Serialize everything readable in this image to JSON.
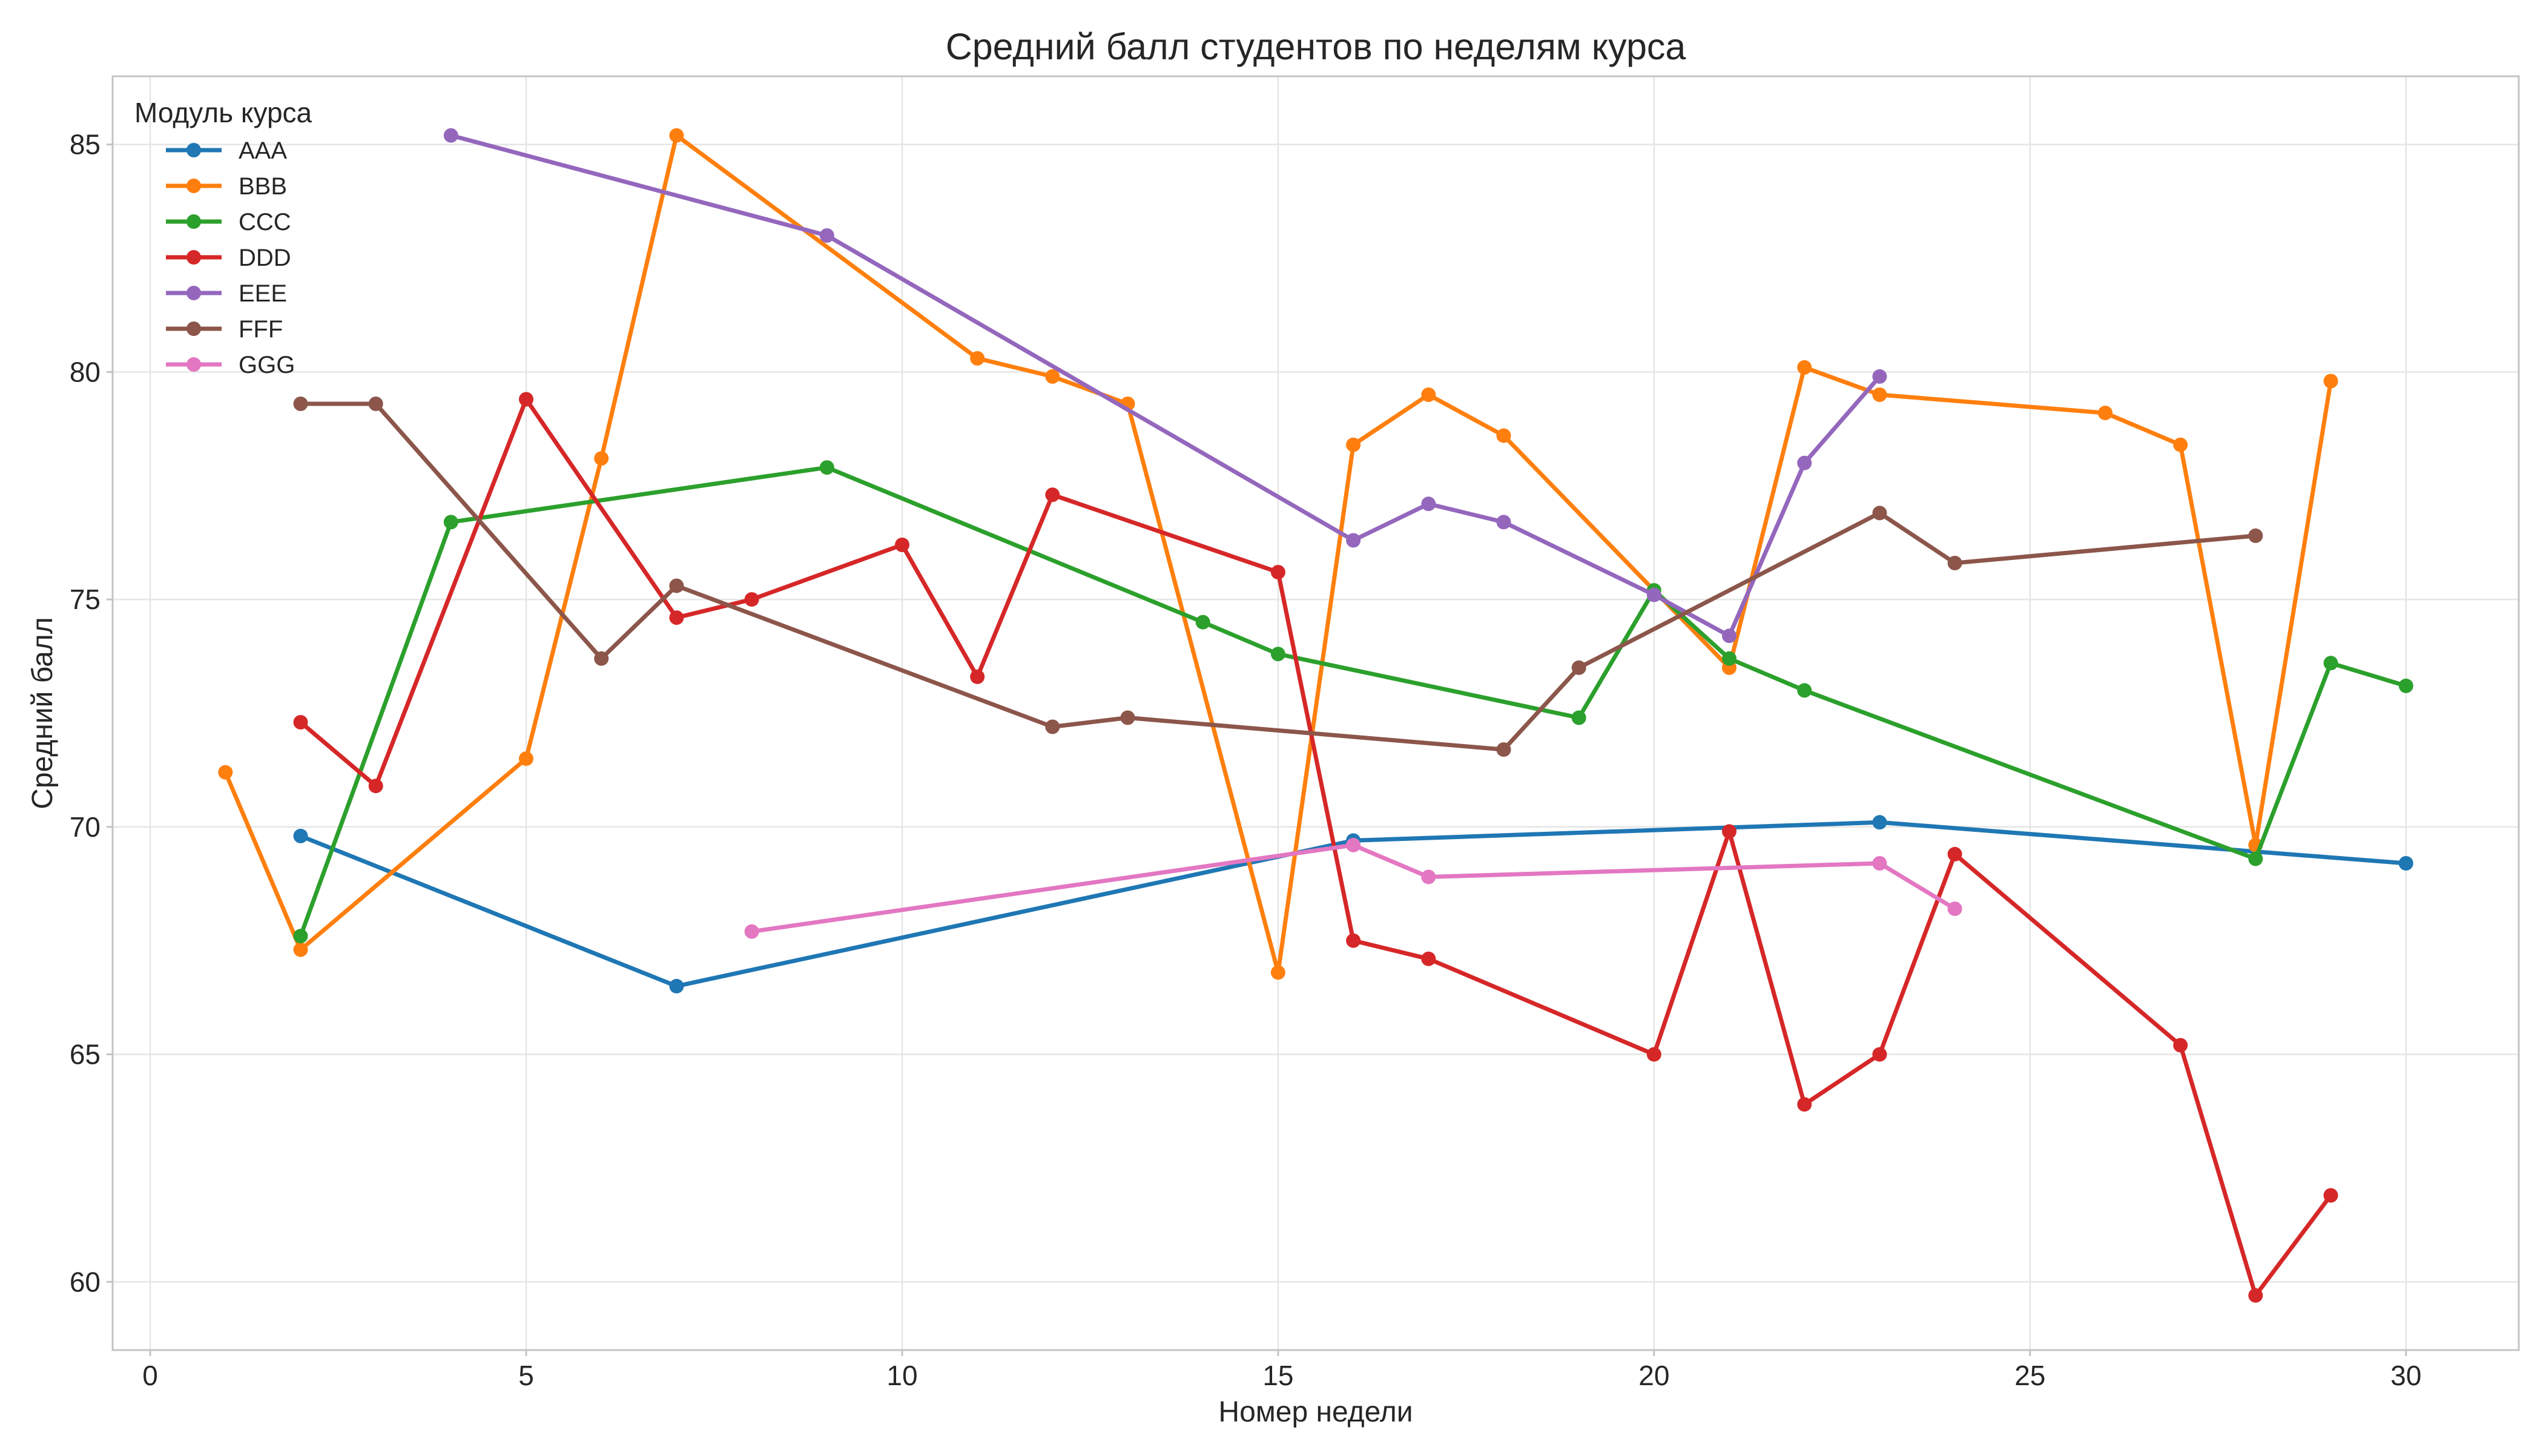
{
  "chart_data": {
    "type": "line",
    "title": "Средний балл студентов по неделям курса",
    "xlabel": "Номер недели",
    "ylabel": "Средний балл",
    "xlim": [
      -0.5,
      31.5
    ],
    "ylim": [
      58.5,
      86.5
    ],
    "xticks": [
      0,
      5,
      10,
      15,
      20,
      25,
      30
    ],
    "yticks": [
      60,
      65,
      70,
      75,
      80,
      85
    ],
    "grid": true,
    "legend": {
      "title": "Модуль курса",
      "placement": "top-left"
    },
    "series": [
      {
        "name": "AAA",
        "color": "#1f77b4",
        "points": [
          [
            2,
            69.8
          ],
          [
            7,
            66.5
          ],
          [
            16,
            69.7
          ],
          [
            23,
            70.1
          ],
          [
            30,
            69.2
          ]
        ]
      },
      {
        "name": "BBB",
        "color": "#ff7f0e",
        "points": [
          [
            1,
            71.2
          ],
          [
            2,
            67.3
          ],
          [
            5,
            71.5
          ],
          [
            6,
            78.1
          ],
          [
            7,
            85.2
          ],
          [
            11,
            80.3
          ],
          [
            12,
            79.9
          ],
          [
            13,
            79.3
          ],
          [
            15,
            66.8
          ],
          [
            16,
            78.4
          ],
          [
            17,
            79.5
          ],
          [
            18,
            78.6
          ],
          [
            21,
            73.5
          ],
          [
            22,
            80.1
          ],
          [
            23,
            79.5
          ],
          [
            26,
            79.1
          ],
          [
            27,
            78.4
          ],
          [
            28,
            69.6
          ],
          [
            29,
            79.8
          ]
        ]
      },
      {
        "name": "CCC",
        "color": "#2ca02c",
        "points": [
          [
            2,
            67.6
          ],
          [
            4,
            76.7
          ],
          [
            9,
            77.9
          ],
          [
            14,
            74.5
          ],
          [
            15,
            73.8
          ],
          [
            19,
            72.4
          ],
          [
            20,
            75.2
          ],
          [
            21,
            73.7
          ],
          [
            22,
            73.0
          ],
          [
            28,
            69.3
          ],
          [
            29,
            73.6
          ],
          [
            30,
            73.1
          ]
        ]
      },
      {
        "name": "DDD",
        "color": "#d62728",
        "points": [
          [
            2,
            72.3
          ],
          [
            3,
            70.9
          ],
          [
            5,
            79.4
          ],
          [
            7,
            74.6
          ],
          [
            8,
            75.0
          ],
          [
            10,
            76.2
          ],
          [
            11,
            73.3
          ],
          [
            12,
            77.3
          ],
          [
            15,
            75.6
          ],
          [
            16,
            67.5
          ],
          [
            17,
            67.1
          ],
          [
            20,
            65.0
          ],
          [
            21,
            69.9
          ],
          [
            22,
            63.9
          ],
          [
            23,
            65.0
          ],
          [
            24,
            69.4
          ],
          [
            27,
            65.2
          ],
          [
            28,
            59.7
          ],
          [
            29,
            61.9
          ]
        ]
      },
      {
        "name": "EEE",
        "color": "#9467bd",
        "points": [
          [
            4,
            85.2
          ],
          [
            9,
            83.0
          ],
          [
            16,
            76.3
          ],
          [
            17,
            77.1
          ],
          [
            18,
            76.7
          ],
          [
            20,
            75.1
          ],
          [
            21,
            74.2
          ],
          [
            22,
            78.0
          ],
          [
            23,
            79.9
          ]
        ]
      },
      {
        "name": "FFF",
        "color": "#8c564b",
        "points": [
          [
            2,
            79.3
          ],
          [
            3,
            79.3
          ],
          [
            6,
            73.7
          ],
          [
            7,
            75.3
          ],
          [
            12,
            72.2
          ],
          [
            13,
            72.4
          ],
          [
            18,
            71.7
          ],
          [
            19,
            73.5
          ],
          [
            23,
            76.9
          ],
          [
            24,
            75.8
          ],
          [
            28,
            76.4
          ]
        ]
      },
      {
        "name": "GGG",
        "color": "#e377c2",
        "points": [
          [
            8,
            67.7
          ],
          [
            16,
            69.6
          ],
          [
            17,
            68.9
          ],
          [
            23,
            69.2
          ],
          [
            24,
            68.2
          ]
        ]
      }
    ]
  }
}
